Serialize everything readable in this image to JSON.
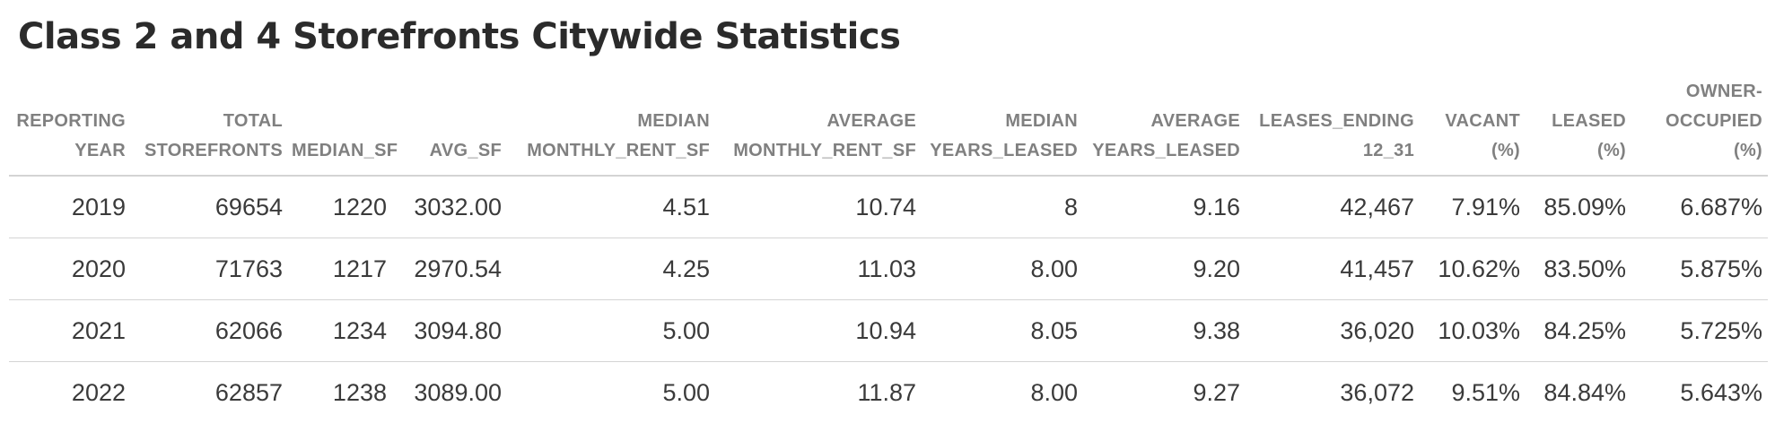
{
  "title": "Class 2 and 4 Storefronts Citywide Statistics",
  "table": {
    "headers": [
      "REPORTING\nYEAR",
      "TOTAL\nSTOREFRONTS",
      "MEDIAN_SF",
      "AVG_SF",
      "MEDIAN\nMONTHLY_RENT_SF",
      "AVERAGE\nMONTHLY_RENT_SF",
      "MEDIAN\nYEARS_LEASED",
      "AVERAGE\nYEARS_LEASED",
      "LEASES_ENDING\n12_31",
      "VACANT\n(%)",
      "LEASED\n(%)",
      "OWNER-\nOCCUPIED\n(%)"
    ],
    "rows": [
      [
        "2019",
        "69654",
        "1220",
        "3032.00",
        "4.51",
        "10.74",
        "8",
        "9.16",
        "42,467",
        "7.91%",
        "85.09%",
        "6.687%"
      ],
      [
        "2020",
        "71763",
        "1217",
        "2970.54",
        "4.25",
        "11.03",
        "8.00",
        "9.20",
        "41,457",
        "10.62%",
        "83.50%",
        "5.875%"
      ],
      [
        "2021",
        "62066",
        "1234",
        "3094.80",
        "5.00",
        "10.94",
        "8.05",
        "9.38",
        "36,020",
        "10.03%",
        "84.25%",
        "5.725%"
      ],
      [
        "2022",
        "62857",
        "1238",
        "3089.00",
        "5.00",
        "11.87",
        "8.00",
        "9.27",
        "36,072",
        "9.51%",
        "84.84%",
        "5.643%"
      ]
    ]
  }
}
